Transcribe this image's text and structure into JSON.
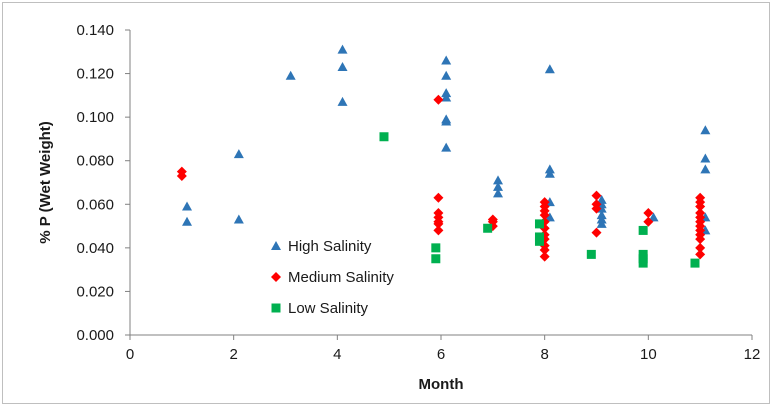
{
  "chart_data": {
    "type": "scatter",
    "xlabel": "Month",
    "ylabel": "% P (Wet Weight)",
    "xlim": [
      0,
      12
    ],
    "ylim": [
      0,
      0.14
    ],
    "x_ticks": [
      "0",
      "2",
      "4",
      "6",
      "8",
      "10",
      "12"
    ],
    "y_ticks": [
      "0.000",
      "0.020",
      "0.040",
      "0.060",
      "0.080",
      "0.100",
      "0.120",
      "0.140"
    ],
    "grid": false,
    "legend_position": "lower-left inside plot",
    "series": [
      {
        "name": "High Salinity",
        "marker": "triangle",
        "color": "#2e75b6",
        "points": [
          [
            1.1,
            0.059
          ],
          [
            1.1,
            0.052
          ],
          [
            2.1,
            0.083
          ],
          [
            2.1,
            0.053
          ],
          [
            3.1,
            0.119
          ],
          [
            4.1,
            0.131
          ],
          [
            4.1,
            0.123
          ],
          [
            4.1,
            0.107
          ],
          [
            6.1,
            0.126
          ],
          [
            6.1,
            0.119
          ],
          [
            6.1,
            0.111
          ],
          [
            6.1,
            0.109
          ],
          [
            6.1,
            0.099
          ],
          [
            6.1,
            0.098
          ],
          [
            6.1,
            0.086
          ],
          [
            7.1,
            0.071
          ],
          [
            7.1,
            0.068
          ],
          [
            7.1,
            0.065
          ],
          [
            8.1,
            0.122
          ],
          [
            8.1,
            0.076
          ],
          [
            8.1,
            0.074
          ],
          [
            8.1,
            0.061
          ],
          [
            8.1,
            0.054
          ],
          [
            9.1,
            0.062
          ],
          [
            9.1,
            0.06
          ],
          [
            9.1,
            0.058
          ],
          [
            9.1,
            0.055
          ],
          [
            9.1,
            0.053
          ],
          [
            9.1,
            0.051
          ],
          [
            10.1,
            0.054
          ],
          [
            11.1,
            0.094
          ],
          [
            11.1,
            0.081
          ],
          [
            11.1,
            0.076
          ],
          [
            11.1,
            0.054
          ],
          [
            11.1,
            0.048
          ]
        ]
      },
      {
        "name": "Medium Salinity",
        "marker": "diamond",
        "color": "#ff0000",
        "points": [
          [
            1.0,
            0.075
          ],
          [
            1.0,
            0.073
          ],
          [
            5.95,
            0.108
          ],
          [
            5.95,
            0.063
          ],
          [
            5.95,
            0.056
          ],
          [
            5.95,
            0.054
          ],
          [
            5.95,
            0.052
          ],
          [
            5.95,
            0.051
          ],
          [
            5.95,
            0.048
          ],
          [
            7.0,
            0.053
          ],
          [
            7.0,
            0.052
          ],
          [
            7.0,
            0.05
          ],
          [
            8.0,
            0.061
          ],
          [
            8.0,
            0.059
          ],
          [
            8.0,
            0.057
          ],
          [
            8.0,
            0.055
          ],
          [
            8.0,
            0.052
          ],
          [
            8.0,
            0.049
          ],
          [
            8.0,
            0.046
          ],
          [
            8.0,
            0.044
          ],
          [
            8.0,
            0.041
          ],
          [
            8.0,
            0.039
          ],
          [
            8.0,
            0.036
          ],
          [
            9.0,
            0.064
          ],
          [
            9.0,
            0.06
          ],
          [
            9.0,
            0.058
          ],
          [
            9.0,
            0.047
          ],
          [
            10.0,
            0.056
          ],
          [
            10.0,
            0.052
          ],
          [
            11.0,
            0.063
          ],
          [
            11.0,
            0.061
          ],
          [
            11.0,
            0.059
          ],
          [
            11.0,
            0.056
          ],
          [
            11.0,
            0.054
          ],
          [
            11.0,
            0.052
          ],
          [
            11.0,
            0.05
          ],
          [
            11.0,
            0.048
          ],
          [
            11.0,
            0.046
          ],
          [
            11.0,
            0.044
          ],
          [
            11.0,
            0.04
          ],
          [
            11.0,
            0.037
          ]
        ]
      },
      {
        "name": "Low Salinity",
        "marker": "square",
        "color": "#00b050",
        "points": [
          [
            4.9,
            0.091
          ],
          [
            5.9,
            0.04
          ],
          [
            5.9,
            0.035
          ],
          [
            6.9,
            0.049
          ],
          [
            7.9,
            0.051
          ],
          [
            7.9,
            0.045
          ],
          [
            7.9,
            0.043
          ],
          [
            8.9,
            0.037
          ],
          [
            9.9,
            0.048
          ],
          [
            9.9,
            0.037
          ],
          [
            9.9,
            0.035
          ],
          [
            9.9,
            0.033
          ],
          [
            10.9,
            0.033
          ]
        ]
      }
    ]
  }
}
